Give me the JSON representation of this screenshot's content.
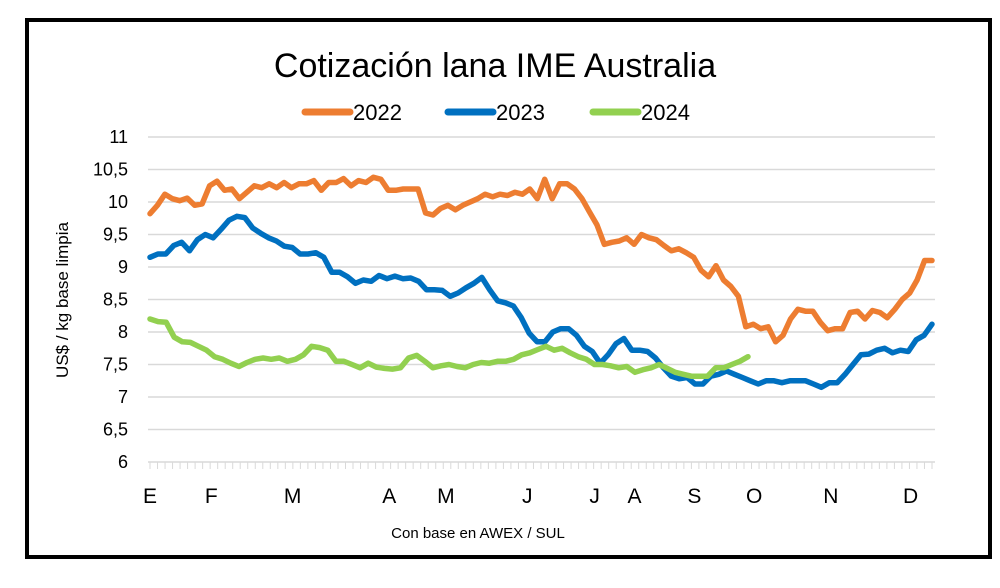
{
  "chart_data": {
    "type": "line",
    "title": "Cotización lana IME Australia",
    "xlabel": "Con base en AWEX / SUL",
    "ylabel": "US$ / kg base limpia",
    "ylim": [
      6,
      11
    ],
    "yticks": [
      "6",
      "6,5",
      "7",
      "7,5",
      "8",
      "8,5",
      "9",
      "9,5",
      "10",
      "10,5",
      "11"
    ],
    "ytick_values": [
      6,
      6.5,
      7,
      7.5,
      8,
      8.5,
      9,
      9.5,
      10,
      10.5,
      11
    ],
    "grid": true,
    "legend_position": "top-center",
    "x_weeks": 52,
    "month_labels": [
      {
        "label": "E",
        "week": 0
      },
      {
        "label": "F",
        "week": 4
      },
      {
        "label": "M",
        "week": 9.3
      },
      {
        "label": "A",
        "week": 15.6
      },
      {
        "label": "M",
        "week": 19.3
      },
      {
        "label": "J",
        "week": 24.6
      },
      {
        "label": "J",
        "week": 29
      },
      {
        "label": "A",
        "week": 31.6
      },
      {
        "label": "S",
        "week": 35.5
      },
      {
        "label": "O",
        "week": 39.4
      },
      {
        "label": "N",
        "week": 44.4
      },
      {
        "label": "D",
        "week": 49.6
      }
    ],
    "series": [
      {
        "name": "2022",
        "color": "#ED7D31",
        "values": [
          9.82,
          9.95,
          10.12,
          10.05,
          10.02,
          10.06,
          9.95,
          9.97,
          10.25,
          10.32,
          10.18,
          10.2,
          10.05,
          10.15,
          10.25,
          10.22,
          10.28,
          10.22,
          10.3,
          10.22,
          10.28,
          10.28,
          10.33,
          10.18,
          10.3,
          10.3,
          10.36,
          10.25,
          10.33,
          10.3,
          10.38,
          10.35,
          10.18,
          10.18,
          10.2,
          10.2,
          10.2,
          9.83,
          9.8,
          9.9,
          9.95,
          9.88,
          9.95,
          10.0,
          10.05,
          10.12,
          10.08,
          10.12,
          10.1,
          10.15,
          10.12,
          10.2
        ]
      },
      {
        "name": "2023",
        "color": "#0070C0",
        "values": [
          9.15,
          9.2,
          9.2,
          9.33,
          9.38,
          9.25,
          9.42,
          9.5,
          9.45,
          9.58,
          9.72,
          9.78,
          9.76,
          9.6,
          9.52,
          9.45,
          9.4,
          9.32,
          9.3,
          9.2,
          9.2,
          9.22,
          9.15,
          8.92,
          8.92,
          8.85,
          8.75,
          8.8,
          8.78,
          8.87,
          8.82,
          8.86,
          8.82,
          8.83,
          8.78,
          8.65,
          8.65,
          8.64,
          8.55,
          8.6,
          8.68,
          8.75,
          8.84,
          8.65,
          8.48,
          8.45,
          8.4,
          8.22,
          7.98,
          7.85,
          7.85,
          8.0
        ]
      },
      {
        "name": "2024",
        "color": "#92D050",
        "values": [
          8.2,
          8.16,
          8.15,
          7.92,
          7.85,
          7.84,
          7.78,
          7.72,
          7.62,
          7.58,
          7.52,
          7.47,
          7.53,
          7.58,
          7.6,
          7.58,
          7.6,
          7.55,
          7.58,
          7.65,
          7.78,
          7.76,
          7.72,
          7.55,
          7.55,
          7.5,
          7.45,
          7.52,
          7.46,
          7.44,
          7.43,
          7.45,
          7.6,
          7.64,
          7.55,
          7.45,
          7.48,
          7.5,
          7.47,
          7.45,
          7.5,
          7.53,
          7.52,
          7.55,
          7.55,
          7.58,
          7.65,
          7.68,
          7.73,
          7.78,
          7.72,
          7.75
        ]
      }
    ],
    "series_tail": {
      "2022": [
        10.05,
        10.35,
        10.05,
        10.28,
        10.28,
        10.2,
        10.05,
        9.85,
        9.65,
        9.35,
        9.38,
        9.4,
        9.45,
        9.35,
        9.5,
        9.45,
        9.42,
        9.33,
        9.25,
        9.28,
        9.22,
        9.15,
        8.95,
        8.85,
        9.02,
        8.8,
        8.7,
        8.55,
        8.08,
        8.12,
        8.05,
        8.08,
        7.85,
        7.95,
        8.2,
        8.35,
        8.32,
        8.32,
        8.15,
        8.02,
        8.05,
        8.05,
        8.3,
        8.32,
        8.2,
        8.33,
        8.3,
        8.22,
        8.35,
        8.5,
        8.6,
        8.8,
        9.1,
        9.1
      ],
      "2023": [
        8.05,
        8.05,
        7.95,
        7.78,
        7.7,
        7.52,
        7.65,
        7.82,
        7.9,
        7.72,
        7.72,
        7.7,
        7.6,
        7.45,
        7.32,
        7.28,
        7.3,
        7.2,
        7.2,
        7.32,
        7.35,
        7.4,
        7.35,
        7.3,
        7.25,
        7.2,
        7.25,
        7.25,
        7.22,
        7.25,
        7.25,
        7.25,
        7.2,
        7.15,
        7.22,
        7.22,
        7.35,
        7.5,
        7.65,
        7.66,
        7.72,
        7.75,
        7.68,
        7.72,
        7.7,
        7.88,
        7.95,
        8.12
      ],
      "2024": [
        7.68,
        7.62,
        7.58,
        7.5,
        7.5,
        7.48,
        7.45,
        7.47,
        7.38,
        7.42,
        7.45,
        7.5,
        7.44,
        7.38,
        7.35,
        7.32,
        7.32,
        7.32,
        7.45,
        7.45,
        7.5,
        7.55,
        7.62
      ]
    }
  },
  "legend": [
    {
      "label": "2022",
      "color": "#ED7D31"
    },
    {
      "label": "2023",
      "color": "#0070C0"
    },
    {
      "label": "2024",
      "color": "#92D050"
    }
  ]
}
